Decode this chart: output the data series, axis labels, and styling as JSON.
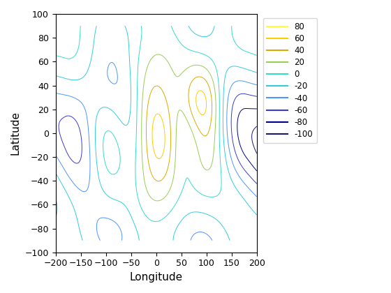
{
  "title": "",
  "xlabel": "Longitude",
  "ylabel": "Latitude",
  "xlim": [
    -200,
    200
  ],
  "ylim": [
    -100,
    100
  ],
  "xticks": [
    -200,
    -150,
    -100,
    -50,
    0,
    50,
    100,
    150,
    200
  ],
  "yticks": [
    -100,
    -80,
    -60,
    -40,
    -20,
    0,
    20,
    40,
    60,
    80,
    100
  ],
  "levels": [
    -100,
    -80,
    -60,
    -40,
    -20,
    0,
    20,
    40,
    60,
    80
  ],
  "legend_labels": [
    "80",
    "60",
    "40",
    "20",
    "0",
    "-20",
    "-40",
    "-60",
    "-80",
    "-100"
  ],
  "legend_colors": [
    "#ffff19",
    "#ffcc00",
    "#cc9900",
    "#99cc66",
    "#33cccc",
    "#33aaff",
    "#6666dd",
    "#3333bb",
    "#000099",
    "#000066"
  ],
  "background": "#ffffff",
  "figsize": [
    5.6,
    4.2
  ],
  "dpi": 100
}
